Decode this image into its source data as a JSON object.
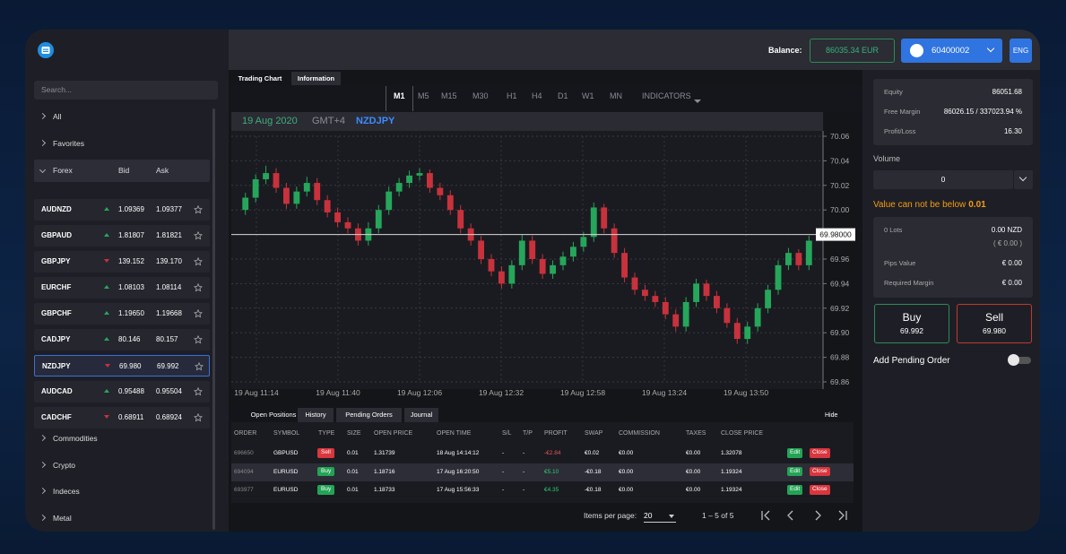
{
  "header": {
    "balance_label": "Balance:",
    "balance": "86035.34 EUR",
    "account": "60400002",
    "language": "ENG"
  },
  "sidebar": {
    "search_placeholder": "Search...",
    "groups_top": [
      "All",
      "Favorites"
    ],
    "forex": {
      "label": "Forex",
      "bid": "Bid",
      "ask": "Ask",
      "selected": 6,
      "rows": [
        {
          "symbol": "AUDNZD",
          "bid": "1.09369",
          "ask": "1.09377",
          "dir": "up"
        },
        {
          "symbol": "GBPAUD",
          "bid": "1.81807",
          "ask": "1.81821",
          "dir": "up"
        },
        {
          "symbol": "GBPJPY",
          "bid": "139.152",
          "ask": "139.170",
          "dir": "down"
        },
        {
          "symbol": "EURCHF",
          "bid": "1.08103",
          "ask": "1.08114",
          "dir": "up"
        },
        {
          "symbol": "GBPCHF",
          "bid": "1.19650",
          "ask": "1.19668",
          "dir": "up"
        },
        {
          "symbol": "CADJPY",
          "bid": "80.146",
          "ask": "80.157",
          "dir": "up"
        },
        {
          "symbol": "NZDJPY",
          "bid": "69.980",
          "ask": "69.992",
          "dir": "down"
        },
        {
          "symbol": "AUDCAD",
          "bid": "0.95488",
          "ask": "0.95504",
          "dir": "up"
        },
        {
          "symbol": "CADCHF",
          "bid": "0.68911",
          "ask": "0.68924",
          "dir": "down"
        }
      ]
    },
    "groups_bottom": [
      "Commodities",
      "Crypto",
      "Indeces",
      "Metal"
    ]
  },
  "chart_tabs": [
    "Trading Chart",
    "Information"
  ],
  "timeframes": {
    "items": [
      "M1",
      "M5",
      "M15",
      "M30",
      "H1",
      "H4",
      "D1",
      "W1",
      "MN"
    ],
    "active": 0,
    "indicators": "INDICATORS"
  },
  "chart_info": {
    "date": "19 Aug 2020",
    "timezone": "GMT+4",
    "symbol": "NZDJPY"
  },
  "chart_data": {
    "type": "candlestick",
    "up_color": "#26a65b",
    "down_color": "#c8323c",
    "grid": true,
    "open": [
      70.0,
      70.01,
      70.025,
      70.03,
      70.018,
      70.005,
      70.015,
      70.022,
      70.008,
      69.998,
      69.99,
      69.985,
      69.975,
      69.985,
      70.0,
      70.015,
      70.022,
      70.028,
      70.03,
      70.018,
      70.012,
      70.0,
      69.985,
      69.975,
      69.96,
      69.95,
      69.94,
      69.955,
      69.975,
      69.96,
      69.948,
      69.955,
      69.962,
      69.97,
      69.978,
      70.002,
      69.985,
      69.965,
      69.945,
      69.935,
      69.93,
      69.925,
      69.915,
      69.905,
      69.925,
      69.94,
      69.93,
      69.92,
      69.908,
      69.895,
      69.905,
      69.92,
      69.935,
      69.955,
      69.965,
      69.955
    ],
    "high": [
      70.014,
      70.029,
      70.036,
      70.034,
      70.022,
      70.019,
      70.027,
      70.026,
      70.012,
      70.002,
      69.994,
      69.989,
      69.99,
      70.004,
      70.019,
      70.026,
      70.032,
      70.034,
      70.033,
      70.022,
      70.016,
      70.004,
      69.989,
      69.979,
      69.964,
      69.954,
      69.959,
      69.98,
      69.979,
      69.964,
      69.959,
      69.966,
      69.974,
      69.982,
      70.006,
      70.005,
      69.989,
      69.969,
      69.949,
      69.939,
      69.934,
      69.929,
      69.919,
      69.929,
      69.944,
      69.943,
      69.934,
      69.924,
      69.912,
      69.909,
      69.924,
      69.939,
      69.959,
      69.969,
      69.968,
      69.979
    ],
    "low": [
      69.996,
      70.006,
      70.021,
      70.014,
      70.001,
      70.001,
      70.011,
      70.004,
      69.994,
      69.986,
      69.981,
      69.971,
      69.971,
      69.981,
      69.996,
      70.011,
      70.018,
      70.024,
      70.014,
      70.008,
      69.996,
      69.981,
      69.971,
      69.956,
      69.946,
      69.936,
      69.936,
      69.951,
      69.956,
      69.944,
      69.944,
      69.951,
      69.958,
      69.966,
      69.974,
      69.981,
      69.961,
      69.941,
      69.931,
      69.926,
      69.921,
      69.911,
      69.901,
      69.901,
      69.921,
      69.926,
      69.916,
      69.904,
      69.891,
      69.891,
      69.901,
      69.916,
      69.931,
      69.951,
      69.951,
      69.951
    ],
    "close": [
      70.01,
      70.025,
      70.03,
      70.018,
      70.005,
      70.015,
      70.022,
      70.008,
      69.998,
      69.99,
      69.985,
      69.975,
      69.985,
      70.0,
      70.015,
      70.022,
      70.028,
      70.03,
      70.018,
      70.012,
      70.0,
      69.985,
      69.975,
      69.96,
      69.95,
      69.94,
      69.955,
      69.975,
      69.96,
      69.948,
      69.955,
      69.962,
      69.97,
      69.978,
      70.002,
      69.985,
      69.965,
      69.945,
      69.935,
      69.93,
      69.925,
      69.915,
      69.905,
      69.925,
      69.94,
      69.93,
      69.92,
      69.908,
      69.895,
      69.905,
      69.92,
      69.935,
      69.955,
      69.965,
      69.955,
      69.975
    ],
    "ylim": [
      69.86,
      70.06
    ],
    "yticks": [
      70.06,
      70.04,
      70.02,
      {
        "value": 70,
        "label": "70.00"
      },
      69.98,
      69.96,
      69.94,
      69.92,
      {
        "value": 69.9,
        "label": "69.90"
      },
      69.88,
      69.86
    ],
    "xtick_labels": [
      "19 Aug 11:14",
      "19 Aug 11:40",
      "19 Aug 12:06",
      "19 Aug 12:32",
      "19 Aug 12:58",
      "19 Aug 13:24",
      "19 Aug 13:50"
    ],
    "price_line": {
      "value": 69.98,
      "label": "69.98000"
    }
  },
  "positions": {
    "tabs": [
      "Open Positions",
      "History",
      "Pending Orders",
      "Journal"
    ],
    "active_tab": 0,
    "hide": "Hide",
    "columns": [
      "ORDER",
      "SYMBOL",
      "TYPE",
      "SIZE",
      "OPEN PRICE",
      "OPEN TIME",
      "S/L",
      "T/P",
      "PROFIT",
      "SWAP",
      "COMMISSION",
      "TAXES",
      "CLOSE PRICE"
    ],
    "highlighted_row": 1,
    "rows": [
      {
        "cells": [
          "696650",
          "GBPUSD",
          "Sell",
          "0.01",
          "1.31739",
          "18 Aug 14:14:12",
          "-",
          "-",
          "-€2.84",
          "€0.02",
          "€0.00",
          "€0.00",
          "1.32078"
        ],
        "type_color": "#d9363e",
        "profit_color": "#e05555"
      },
      {
        "cells": [
          "694094",
          "EURUSD",
          "Buy",
          "0.01",
          "1.18716",
          "17 Aug 16:20:50",
          "-",
          "-",
          "€5.10",
          "-€0.18",
          "€0.00",
          "€0.00",
          "1.19324"
        ],
        "type_color": "#23a455",
        "profit_color": "#2ecc71"
      },
      {
        "cells": [
          "693977",
          "EURUSD",
          "Buy",
          "0.01",
          "1.18733",
          "17 Aug 15:56:33",
          "-",
          "-",
          "€4.35",
          "-€0.18",
          "€0.00",
          "€0.00",
          "1.19324"
        ],
        "type_color": "#23a455",
        "profit_color": "#2ecc71"
      }
    ],
    "actions": [
      "Edit",
      "Close"
    ],
    "items_per_page_label": "Items per page:",
    "items_per_page": "20",
    "range": "1 – 5 of 5"
  },
  "account_panel": {
    "equity_label": "Equity",
    "equity": "86051.68",
    "free_margin_label": "Free Margin",
    "free_margin": "86026.15 / 337023.94 %",
    "pl_label": "Profit/Loss",
    "pl": "16.30",
    "volume_label": "Volume",
    "volume": "0",
    "warning": "Value can not be below",
    "warning_min": "0.01",
    "lots": "0 Lots",
    "lots_value": "0.00 NZD",
    "lots_eur": "( € 0.00 )",
    "pips_label": "Pips Value",
    "pips": "€ 0.00",
    "margin_label": "Required Margin",
    "margin": "€ 0.00",
    "buy": "Buy",
    "buy_price": "69.992",
    "sell": "Sell",
    "sell_price": "69.980",
    "pending": "Add Pending Order"
  }
}
